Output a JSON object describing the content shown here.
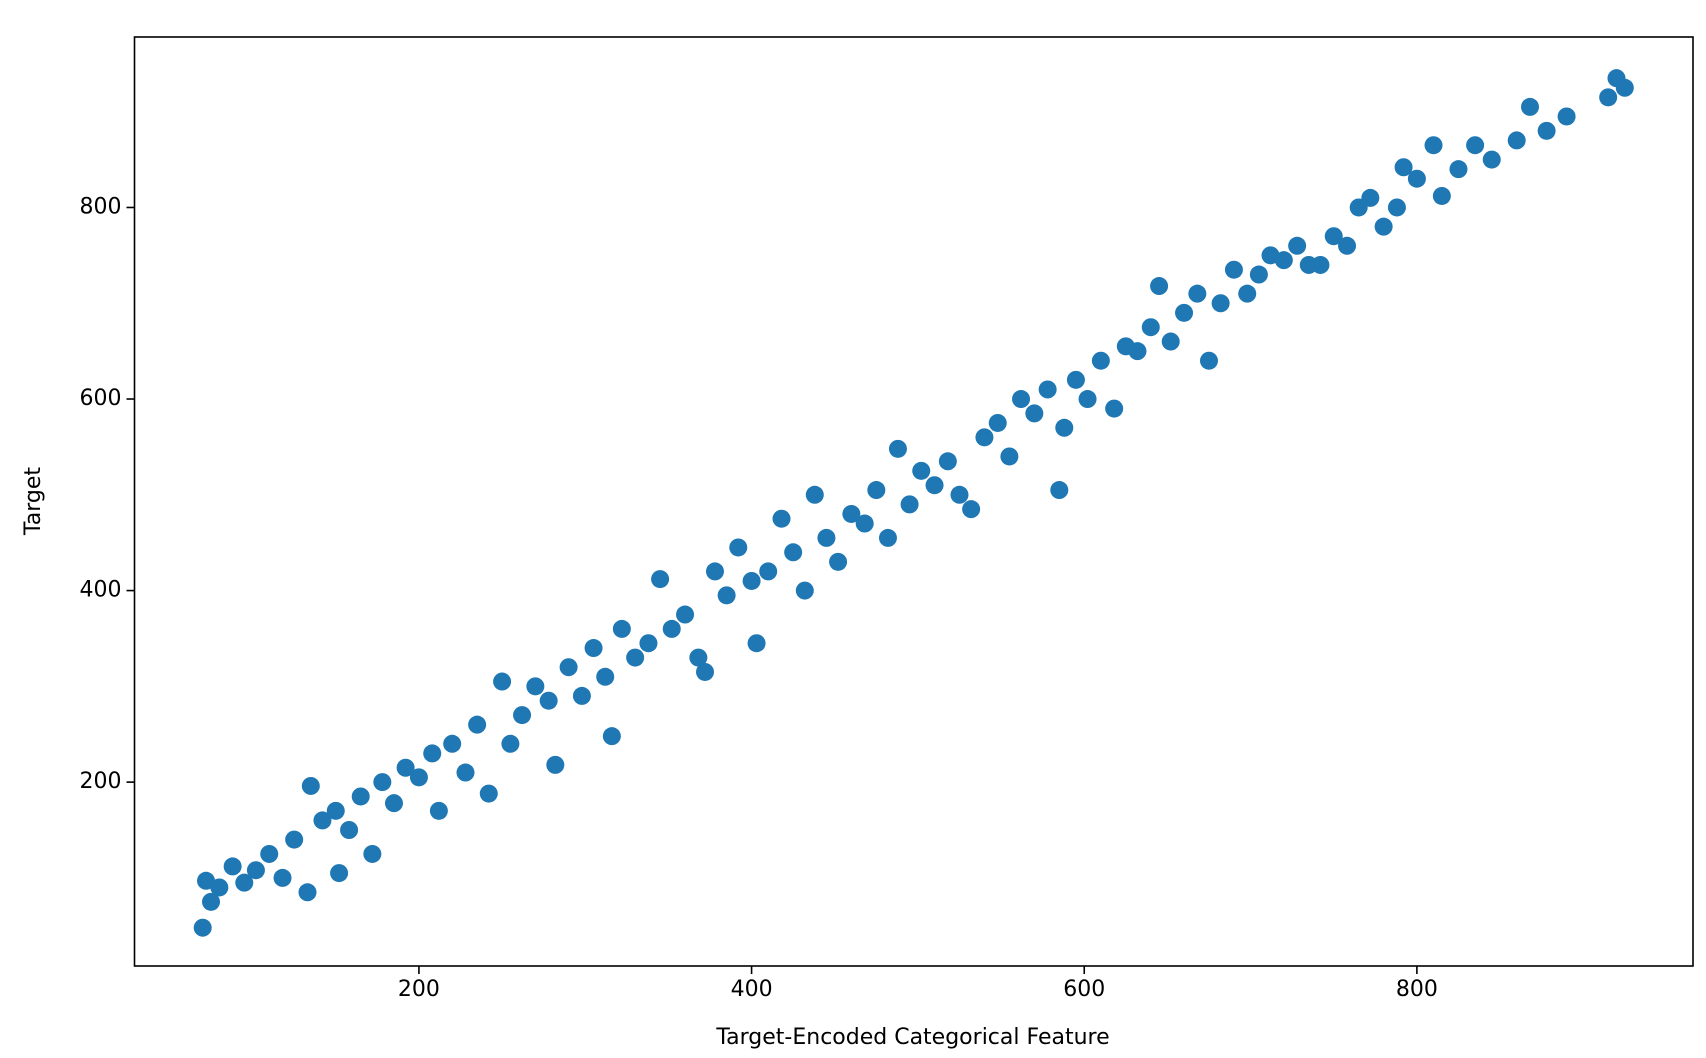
{
  "chart_data": {
    "type": "scatter",
    "xlabel": "Target-Encoded Categorical Feature",
    "ylabel": "Target",
    "color": "#1f77b4",
    "xlim": [
      29,
      966
    ],
    "ylim": [
      8,
      978
    ],
    "xticks": [
      200,
      400,
      600,
      800
    ],
    "yticks": [
      200,
      400,
      600,
      800
    ],
    "grid": false,
    "x": [
      70,
      72,
      75,
      80,
      88,
      95,
      102,
      110,
      118,
      125,
      133,
      135,
      142,
      150,
      152,
      158,
      165,
      172,
      178,
      185,
      192,
      200,
      208,
      212,
      220,
      228,
      235,
      242,
      250,
      255,
      262,
      270,
      278,
      282,
      290,
      298,
      305,
      312,
      316,
      322,
      330,
      338,
      345,
      352,
      360,
      368,
      372,
      378,
      385,
      392,
      400,
      403,
      410,
      418,
      425,
      432,
      438,
      445,
      452,
      460,
      468,
      475,
      482,
      488,
      495,
      502,
      510,
      518,
      525,
      532,
      540,
      548,
      555,
      562,
      570,
      578,
      585,
      588,
      595,
      602,
      610,
      618,
      625,
      632,
      640,
      645,
      652,
      660,
      668,
      675,
      682,
      690,
      698,
      705,
      712,
      720,
      728,
      735,
      742,
      750,
      758,
      765,
      772,
      780,
      788,
      792,
      800,
      810,
      815,
      825,
      835,
      845,
      860,
      868,
      878,
      890,
      915,
      920,
      925
    ],
    "y": [
      48,
      97,
      75,
      90,
      112,
      95,
      108,
      125,
      100,
      140,
      85,
      196,
      160,
      170,
      105,
      150,
      185,
      125,
      200,
      178,
      215,
      205,
      230,
      170,
      240,
      210,
      260,
      188,
      305,
      240,
      270,
      300,
      285,
      218,
      320,
      290,
      340,
      310,
      248,
      360,
      330,
      345,
      412,
      360,
      375,
      330,
      315,
      420,
      395,
      445,
      410,
      345,
      420,
      475,
      440,
      400,
      500,
      455,
      430,
      480,
      470,
      505,
      455,
      548,
      490,
      525,
      510,
      535,
      500,
      485,
      560,
      575,
      540,
      600,
      585,
      610,
      505,
      570,
      620,
      600,
      640,
      590,
      655,
      650,
      675,
      718,
      660,
      690,
      710,
      640,
      700,
      735,
      710,
      730,
      750,
      745,
      760,
      740,
      740,
      770,
      760,
      800,
      810,
      780,
      800,
      842,
      830,
      865,
      812,
      840,
      865,
      850,
      870,
      905,
      880,
      895,
      915,
      935,
      925
    ]
  }
}
